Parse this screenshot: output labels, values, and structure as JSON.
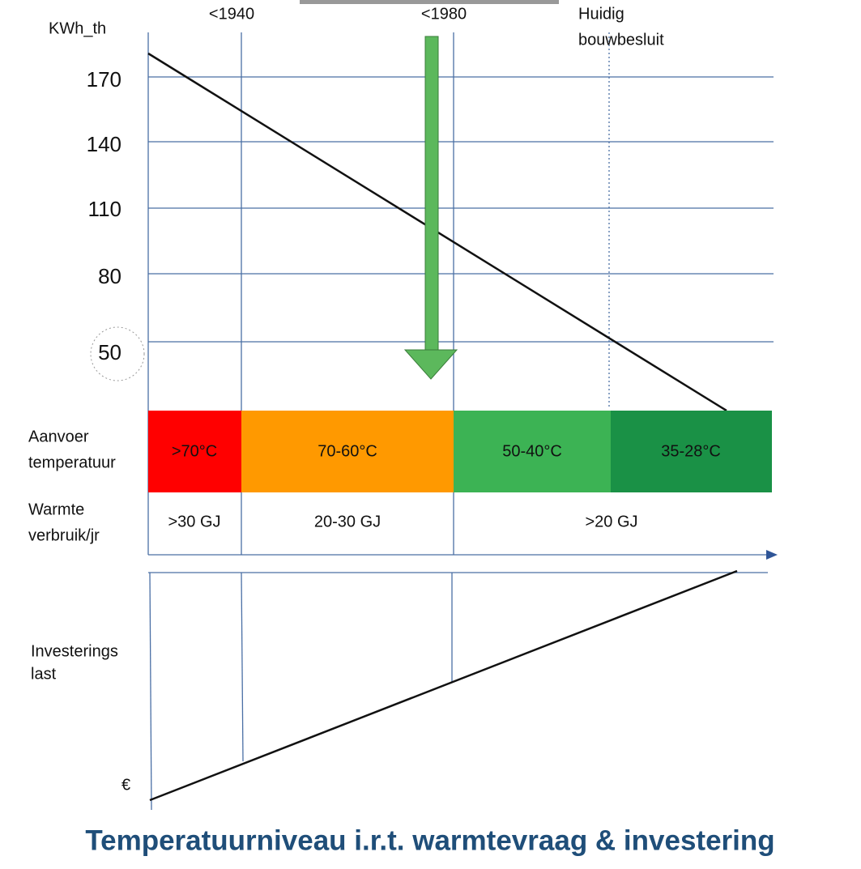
{
  "header": {
    "y_unit": "KWh_th",
    "periods": [
      "<1940",
      "<1980"
    ],
    "current": [
      "Huidig",
      "bouwbesluit"
    ]
  },
  "y_labels": [
    "170",
    "140",
    "110",
    "80",
    "50"
  ],
  "supply": {
    "label": [
      "Aanvoer",
      "temperatuur"
    ],
    "bands": [
      ">70°C",
      "70-60°C",
      "50-40°C",
      "35-28°C"
    ]
  },
  "usage": {
    "label": [
      "Warmte",
      "verbruik/jr"
    ],
    "cells": [
      ">30 GJ",
      "20-30 GJ",
      ">20 GJ"
    ]
  },
  "investment": {
    "label": [
      "Investerings",
      "last"
    ],
    "unit": "€"
  },
  "title": "Temperatuurniveau i.r.t. warmtevraag & investering"
}
